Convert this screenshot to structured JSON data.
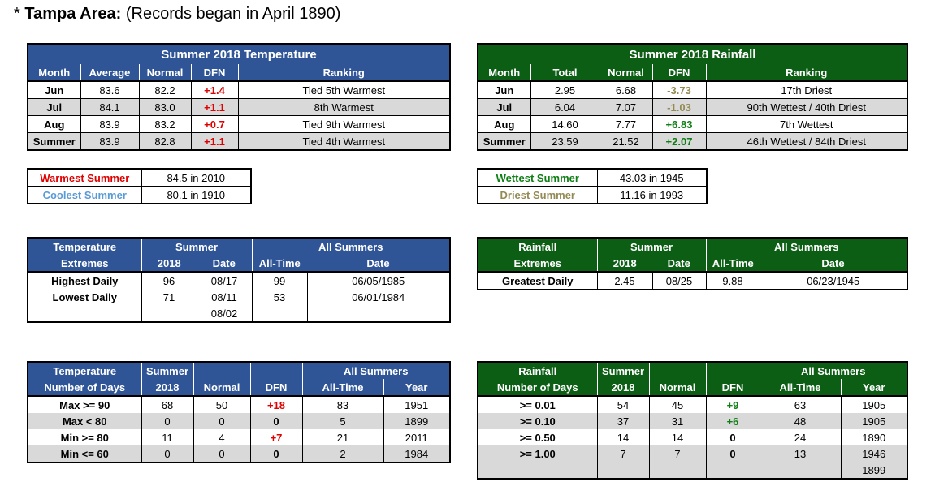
{
  "title": {
    "prefix": "* ",
    "bold": "Tampa Area:",
    "rest": " (Records began in April 1890)"
  },
  "temp": {
    "title": "Summer 2018 Temperature",
    "headers": [
      "Month",
      "Average",
      "Normal",
      "DFN",
      "Ranking"
    ],
    "rows": [
      [
        "Jun",
        "83.6",
        "82.2",
        "+1.4",
        "Tied 5th Warmest"
      ],
      [
        "Jul",
        "84.1",
        "83.0",
        "+1.1",
        "8th Warmest"
      ],
      [
        "Aug",
        "83.9",
        "83.2",
        "+0.7",
        "Tied 9th Warmest"
      ],
      [
        "Summer",
        "83.9",
        "82.8",
        "+1.1",
        "Tied 4th Warmest"
      ]
    ]
  },
  "rain": {
    "title": "Summer 2018 Rainfall",
    "headers": [
      "Month",
      "Total",
      "Normal",
      "DFN",
      "Ranking"
    ],
    "rows": [
      [
        "Jun",
        "2.95",
        "6.68",
        "-3.73",
        "17th Driest"
      ],
      [
        "Jul",
        "6.04",
        "7.07",
        "-1.03",
        "90th Wettest / 40th Driest"
      ],
      [
        "Aug",
        "14.60",
        "7.77",
        "+6.83",
        "7th Wettest"
      ],
      [
        "Summer",
        "23.59",
        "21.52",
        "+2.07",
        "46th Wettest / 84th Driest"
      ]
    ]
  },
  "temp_rec": [
    [
      "Warmest Summer",
      "84.5 in 2010"
    ],
    [
      "Coolest Summer",
      "80.1 in 1910"
    ]
  ],
  "rain_rec": [
    [
      "Wettest Summer",
      "43.03 in 1945"
    ],
    [
      "Driest Summer",
      "11.16 in 1993"
    ]
  ],
  "temp_ext": {
    "h1": [
      "Temperature",
      "Summer",
      "All Summers"
    ],
    "h2": [
      "Extremes",
      "2018",
      "Date",
      "All-Time",
      "Date"
    ],
    "rows": [
      [
        "Highest Daily",
        "96",
        "08/17",
        "99",
        "06/05/1985"
      ],
      [
        "Lowest Daily",
        "71",
        "08/11",
        "53",
        "06/01/1984"
      ],
      [
        "",
        "",
        "08/02",
        "",
        ""
      ]
    ]
  },
  "rain_ext": {
    "h1": [
      "Rainfall",
      "Summer",
      "All Summers"
    ],
    "h2": [
      "Extremes",
      "2018",
      "Date",
      "All-Time",
      "Date"
    ],
    "rows": [
      [
        "Greatest Daily",
        "2.45",
        "08/25",
        "9.88",
        "06/23/1945"
      ]
    ]
  },
  "temp_days": {
    "h1": [
      "Temperature",
      "Summer",
      "",
      "",
      "All Summers"
    ],
    "h2": [
      "Number of Days",
      "2018",
      "Normal",
      "DFN",
      "All-Time",
      "Year"
    ],
    "rows": [
      [
        "Max >= 90",
        "68",
        "50",
        "+18",
        "83",
        "1951"
      ],
      [
        "Max < 80",
        "0",
        "0",
        "0",
        "5",
        "1899"
      ],
      [
        "Min >= 80",
        "11",
        "4",
        "+7",
        "21",
        "2011"
      ],
      [
        "Min <= 60",
        "0",
        "0",
        "0",
        "2",
        "1984"
      ]
    ]
  },
  "rain_days": {
    "h1": [
      "Rainfall",
      "Summer",
      "",
      "",
      "All Summers"
    ],
    "h2": [
      "Number of Days",
      "2018",
      "Normal",
      "DFN",
      "All-Time",
      "Year"
    ],
    "rows": [
      [
        ">= 0.01",
        "54",
        "45",
        "+9",
        "63",
        "1905"
      ],
      [
        ">= 0.10",
        "37",
        "31",
        "+6",
        "48",
        "1905"
      ],
      [
        ">= 0.50",
        "14",
        "14",
        "0",
        "24",
        "1890"
      ],
      [
        ">= 1.00",
        "7",
        "7",
        "0",
        "13",
        "1946"
      ],
      [
        "",
        "",
        "",
        "",
        "",
        "1899"
      ]
    ]
  },
  "colors": {
    "blue_header": "#2f5597",
    "green_header": "#0d5e15",
    "positive_temp": "#e00000",
    "negative_rain": "#948a54",
    "positive_rain": "#0f7f15",
    "cool": "#5b9bd5",
    "row_shade": "#d9d9d9"
  }
}
